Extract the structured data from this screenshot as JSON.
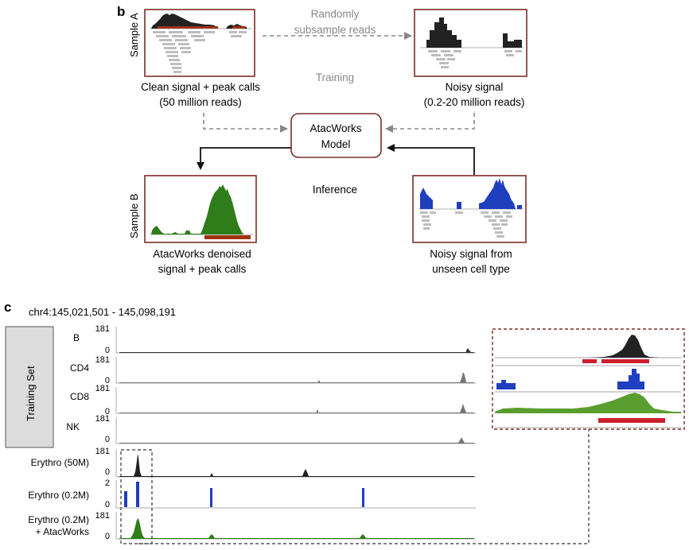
{
  "panel_b": {
    "letter": "b",
    "sample_a_label": "Sample A",
    "sample_b_label": "Sample B",
    "clean_label_1": "Clean signal + peak calls",
    "clean_label_2": "(50 million reads)",
    "noisy_label_1": "Noisy signal",
    "noisy_label_2": "(0.2-20 million reads)",
    "subsample_1": "Randomly",
    "subsample_2": "subsample reads",
    "training": "Training",
    "model_1": "AtacWorks",
    "model_2": "Model",
    "inference": "Inference",
    "denoised_1": "AtacWorks denoised",
    "denoised_2": "signal + peak calls",
    "unseen_1": "Noisy signal from",
    "unseen_2": "unseen cell type"
  },
  "panel_c": {
    "letter": "c",
    "region": "chr4:145,021,501 - 145,098,191",
    "training_set_label": "Training Set",
    "tracks": [
      {
        "name": "B",
        "max": "181",
        "min": "0"
      },
      {
        "name": "CD4",
        "max": "181",
        "min": "0"
      },
      {
        "name": "CD8",
        "max": "181",
        "min": "0"
      },
      {
        "name": "NK",
        "max": "181",
        "min": "0"
      },
      {
        "name": "Erythro (50M)",
        "max": "181",
        "min": "0"
      },
      {
        "name": "Erythro (0.2M)",
        "max": "2",
        "min": "0"
      },
      {
        "name": "Erythro (0.2M)",
        "name2": "+ AtacWorks",
        "max": "181",
        "min": "0"
      }
    ]
  },
  "colors": {
    "frame": "#7a2e2a",
    "black_signal": "#222222",
    "green_signal": "#2e7d1a",
    "blue_signal": "#1f3fbf",
    "peak_red": "#cc1f2e",
    "peak_brown": "#a0320f",
    "grey_reads": "#bdbdbd"
  }
}
